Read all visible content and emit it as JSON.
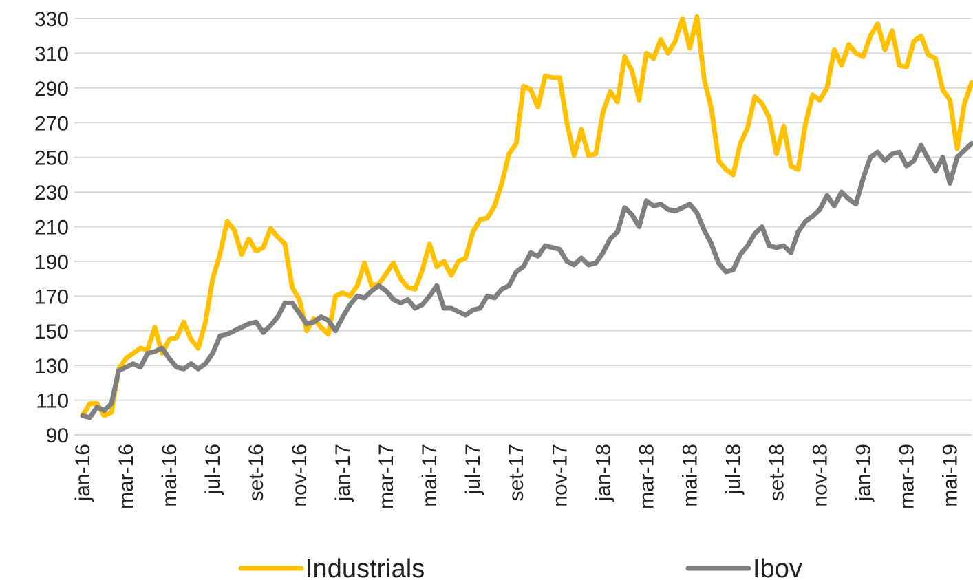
{
  "chart_data": {
    "type": "line",
    "categories": [
      "jan-16",
      null,
      null,
      null,
      null,
      null,
      "mar-16",
      null,
      null,
      null,
      null,
      null,
      "mai-16",
      null,
      null,
      null,
      null,
      null,
      "jul-16",
      null,
      null,
      null,
      null,
      null,
      "set-16",
      null,
      null,
      null,
      null,
      null,
      "nov-16",
      null,
      null,
      null,
      null,
      null,
      "jan-17",
      null,
      null,
      null,
      null,
      null,
      "mar-17",
      null,
      null,
      null,
      null,
      null,
      "mai-17",
      null,
      null,
      null,
      null,
      null,
      "jul-17",
      null,
      null,
      null,
      null,
      null,
      "set-17",
      null,
      null,
      null,
      null,
      null,
      "nov-17",
      null,
      null,
      null,
      null,
      null,
      "jan-18",
      null,
      null,
      null,
      null,
      null,
      "mar-18",
      null,
      null,
      null,
      null,
      null,
      "mai-18",
      null,
      null,
      null,
      null,
      null,
      "jul-18",
      null,
      null,
      null,
      null,
      null,
      "set-18",
      null,
      null,
      null,
      null,
      null,
      "nov-18",
      null,
      null,
      null,
      null,
      null,
      "jan-19",
      null,
      null,
      null,
      null,
      null,
      "mar-19",
      null,
      null,
      null,
      null,
      null,
      "mai-19",
      null,
      null,
      null
    ],
    "series": [
      {
        "name": "Industrials",
        "color": "#FFC000",
        "values": [
          101,
          108,
          108,
          101,
          103,
          128,
          134,
          137,
          140,
          139,
          152,
          137,
          145,
          146,
          155,
          145,
          140,
          155,
          180,
          194,
          213,
          208,
          194,
          203,
          196,
          198,
          209,
          204,
          200,
          175,
          168,
          150,
          157,
          152,
          148,
          170,
          172,
          170,
          176,
          189,
          176,
          177,
          183,
          189,
          180,
          175,
          174,
          185,
          200,
          187,
          190,
          182,
          190,
          192,
          207,
          214,
          215,
          222,
          235,
          252,
          258,
          291,
          289,
          279,
          297,
          296,
          296,
          270,
          251,
          266,
          251,
          252,
          276,
          288,
          282,
          308,
          300,
          283,
          310,
          307,
          318,
          310,
          317,
          330,
          313,
          331,
          295,
          278,
          248,
          243,
          240,
          258,
          267,
          285,
          281,
          273,
          252,
          268,
          245,
          243,
          269,
          286,
          283,
          290,
          312,
          303,
          315,
          310,
          308,
          320,
          327,
          312,
          323,
          303,
          302,
          317,
          320,
          309,
          307,
          289,
          283,
          255,
          281,
          293
        ]
      },
      {
        "name": "Ibov",
        "color": "#7F7F7F",
        "values": [
          101,
          100,
          106,
          104,
          108,
          127,
          129,
          131,
          129,
          137,
          138,
          140,
          134,
          129,
          128,
          131,
          128,
          131,
          137,
          147,
          148,
          150,
          152,
          154,
          155,
          149,
          153,
          158,
          166,
          166,
          160,
          154,
          155,
          158,
          156,
          150,
          158,
          165,
          170,
          169,
          173,
          176,
          173,
          168,
          166,
          168,
          163,
          165,
          170,
          176,
          163,
          163,
          161,
          159,
          162,
          163,
          170,
          169,
          174,
          176,
          184,
          187,
          195,
          193,
          199,
          198,
          197,
          190,
          188,
          192,
          188,
          189,
          195,
          203,
          207,
          221,
          217,
          210,
          225,
          222,
          223,
          220,
          219,
          221,
          223,
          218,
          208,
          200,
          189,
          184,
          185,
          194,
          199,
          206,
          210,
          199,
          198,
          199,
          195,
          207,
          213,
          216,
          220,
          228,
          222,
          230,
          226,
          223,
          238,
          250,
          253,
          248,
          252,
          253,
          245,
          248,
          257,
          249,
          242,
          250,
          235,
          250,
          254,
          258
        ]
      }
    ],
    "ylim": [
      90,
      330
    ],
    "yticks": [
      90,
      110,
      130,
      150,
      170,
      190,
      210,
      230,
      250,
      270,
      290,
      310,
      330
    ],
    "grid": true,
    "legend": "bottom"
  }
}
